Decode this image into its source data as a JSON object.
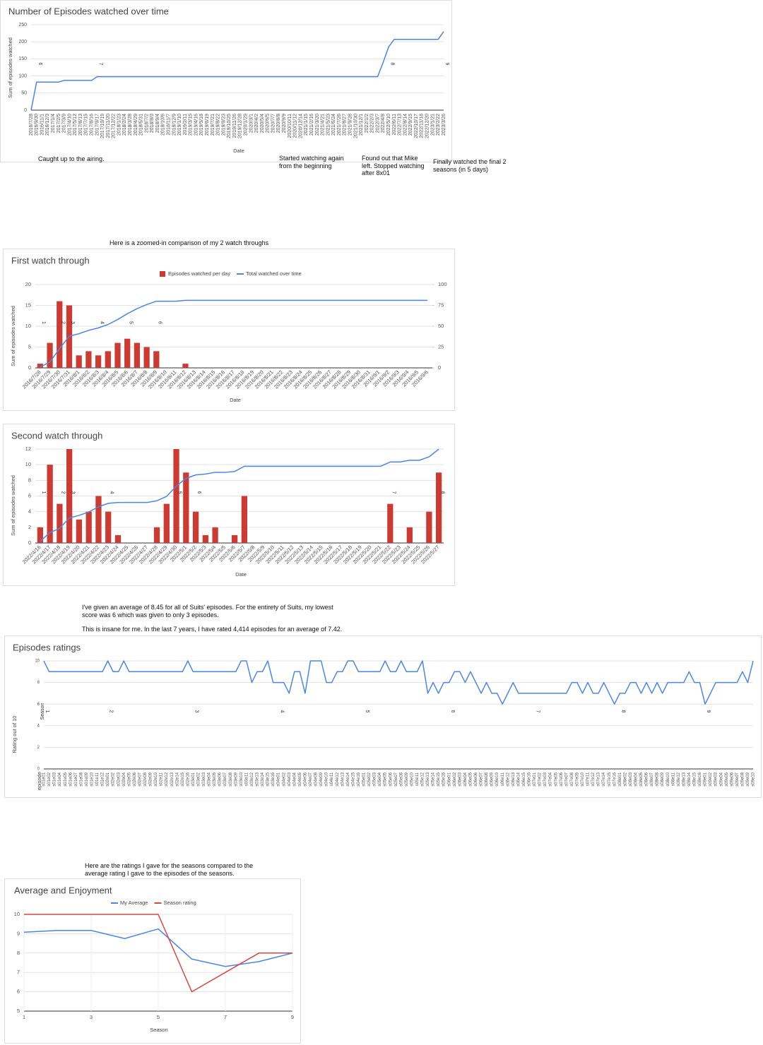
{
  "captions": [
    "Here is a zoomed-in comparison of my 2 watch throughs",
    "I've given an average of 8.45 for all of Suits' episodes. For the entirety of Suits, my lowest score was 6 which was given to only 3 episodes.",
    "This is insane for me. In the last 7 years, I have rated 4,414 episodes for an average of 7.42.",
    "Here are the ratings I gave for the seasons compared to the average rating I gave to the episodes of the seasons."
  ],
  "chart_data": [
    {
      "type": "line",
      "title": "Number of Episodes watched over time",
      "x_label": "Date",
      "y_label": "Sum of episodes watched",
      "categories": [
        "2016/7/28",
        "2016/9/30",
        "2016/11/1",
        "2016/12/3",
        "2017/1/4",
        "2017/2/5",
        "2017/3/9",
        "2017/4/10",
        "2017/5/12",
        "2017/6/13",
        "2017/7/15",
        "2017/8/16",
        "2017/9/17",
        "2017/10/19",
        "2017/11/20",
        "2017/12/22",
        "2018/1/23",
        "2018/2/24",
        "2018/3/28",
        "2018/4/29",
        "2018/5/31",
        "2018/7/2",
        "2018/8/3",
        "2018/9/4",
        "2018/10/6",
        "2018/11/7",
        "2018/12/9",
        "2019/1/10",
        "2019/2/11",
        "2019/3/15",
        "2019/4/16",
        "2019/5/18",
        "2019/6/19",
        "2019/7/21",
        "2019/8/22",
        "2019/9/23",
        "2019/10/25",
        "2019/11/26",
        "2019/12/28",
        "2020/1/29",
        "2020/3/1",
        "2020/4/2",
        "2020/5/4",
        "2020/6/5",
        "2020/7/7",
        "2020/8/8",
        "2020/9/9",
        "2020/10/11",
        "2020/11/12",
        "2020/12/14",
        "2021/1/15",
        "2021/2/16",
        "2021/3/20",
        "2021/4/21",
        "2021/5/23",
        "2021/6/24",
        "2021/7/26",
        "2021/8/27",
        "2021/9/28",
        "2021/10/30",
        "2021/12/1",
        "2022/1/2",
        "2022/2/3",
        "2022/3/7",
        "2022/4/8",
        "2022/5/10",
        "2022/6/11",
        "2022/7/13",
        "2022/8/14",
        "2022/9/15",
        "2022/10/17",
        "2022/11/18",
        "2022/12/20",
        "2023/1/21",
        "2023/2/22",
        "2023/3/26"
      ],
      "series": [
        {
          "color": "#4a86e8",
          "values": [
            0,
            82,
            82,
            82,
            82,
            82,
            87,
            87,
            87,
            87,
            87,
            87,
            98,
            98,
            98,
            98,
            98,
            98,
            98,
            98,
            98,
            98,
            98,
            98,
            98,
            98,
            98,
            98,
            98,
            98,
            98,
            98,
            98,
            98,
            98,
            98,
            98,
            98,
            98,
            98,
            98,
            98,
            98,
            98,
            98,
            98,
            98,
            98,
            98,
            98,
            98,
            98,
            98,
            98,
            98,
            98,
            98,
            98,
            98,
            98,
            98,
            98,
            98,
            98,
            140,
            185,
            207,
            207,
            207,
            207,
            207,
            207,
            207,
            207,
            207,
            230
          ]
        }
      ],
      "ylim": [
        0,
        250
      ],
      "yticks": [
        0,
        50,
        100,
        150,
        200,
        250
      ],
      "grid": true,
      "season_markers": [
        {
          "x": "2016/9/30",
          "label": "6"
        },
        {
          "x": "2017/9/17",
          "label": "7"
        },
        {
          "x": "2022/5/10",
          "label": "8"
        },
        {
          "x": "2023/3/26",
          "label": "9"
        }
      ],
      "notes": [
        "Caught up to the airing.",
        "Started watching again from the beginning",
        "Found out that Mike left. Stopped watching after 8x01",
        "Finally watched the final 2 seasons (in 5 days)"
      ]
    },
    {
      "type": "combo",
      "title": "First watch through",
      "x_label": "Date",
      "y_label": "Sum of episodes watched",
      "legend": "top",
      "categories": [
        "2016/7/28",
        "2016/7/29",
        "2016/7/30",
        "2016/7/31",
        "2016/8/1",
        "2016/8/2",
        "2016/8/3",
        "2016/8/4",
        "2016/8/5",
        "2016/8/6",
        "2016/8/7",
        "2016/8/8",
        "2016/8/9",
        "2016/8/10",
        "2016/8/11",
        "2016/8/12",
        "2016/8/13",
        "2016/8/14",
        "2016/8/15",
        "2016/8/16",
        "2016/8/17",
        "2016/8/18",
        "2016/8/19",
        "2016/8/20",
        "2016/8/21",
        "2016/8/22",
        "2016/8/23",
        "2016/8/24",
        "2016/8/25",
        "2016/8/26",
        "2016/8/27",
        "2016/8/28",
        "2016/8/29",
        "2016/8/30",
        "2016/8/31",
        "2016/9/1",
        "2016/9/2",
        "2016/9/3",
        "2016/9/4",
        "2016/9/5",
        "2016/9/6"
      ],
      "series": [
        {
          "name": "Episodes watched per day",
          "type": "bar",
          "color": "#cc3a32",
          "values": [
            1,
            6,
            16,
            15,
            3,
            4,
            3,
            4,
            6,
            7,
            6,
            5,
            4,
            0,
            0,
            1,
            0,
            0,
            0,
            0,
            0,
            0,
            0,
            0,
            0,
            0,
            0,
            0,
            0,
            0,
            0,
            0,
            0,
            0,
            0,
            0,
            0,
            0,
            0,
            0,
            0
          ]
        },
        {
          "name": "Total watched over time",
          "type": "line",
          "axis": "y2",
          "color": "#4a86e8",
          "values": [
            1,
            7,
            23,
            38,
            41,
            45,
            48,
            52,
            58,
            65,
            71,
            76,
            80,
            80,
            80,
            81,
            81,
            81,
            81,
            81,
            81,
            81,
            81,
            81,
            81,
            81,
            81,
            81,
            81,
            81,
            81,
            81,
            81,
            81,
            81,
            81,
            81,
            81,
            81,
            81,
            81
          ]
        }
      ],
      "ylim": [
        0,
        20
      ],
      "yticks": [
        0,
        5,
        10,
        15,
        20
      ],
      "y2lim": [
        0,
        100
      ],
      "y2ticks": [
        0,
        25,
        50,
        75,
        100
      ],
      "grid": true,
      "season_markers": [
        {
          "x": "2016/7/28",
          "label": "1"
        },
        {
          "x": "2016/7/30",
          "label": "2"
        },
        {
          "x": "2016/7/31",
          "label": "3"
        },
        {
          "x": "2016/8/3",
          "label": "4"
        },
        {
          "x": "2016/8/6",
          "label": "5"
        },
        {
          "x": "2016/8/9",
          "label": "6"
        }
      ]
    },
    {
      "type": "combo",
      "title": "Second watch through",
      "x_label": "Date",
      "y_label": "Sum of episodes watched",
      "categories": [
        "2022/4/16",
        "2022/4/17",
        "2022/4/18",
        "2022/4/19",
        "2022/4/20",
        "2022/4/21",
        "2022/4/22",
        "2022/4/23",
        "2022/4/24",
        "2022/4/25",
        "2022/4/26",
        "2022/4/27",
        "2022/4/28",
        "2022/4/29",
        "2022/4/30",
        "2022/5/1",
        "2022/5/2",
        "2022/5/3",
        "2022/5/4",
        "2022/5/5",
        "2022/5/6",
        "2022/5/7",
        "2022/5/8",
        "2022/5/9",
        "2022/5/10",
        "2022/5/11",
        "2022/5/12",
        "2022/5/13",
        "2022/5/14",
        "2022/5/15",
        "2022/5/16",
        "2022/5/17",
        "2022/5/18",
        "2022/5/19",
        "2022/5/20",
        "2022/5/21",
        "2022/5/22",
        "2022/5/23",
        "2022/5/24",
        "2022/5/25",
        "2022/5/26",
        "2022/5/27"
      ],
      "series": [
        {
          "type": "bar",
          "color": "#cc3a32",
          "values": [
            2,
            10,
            5,
            12,
            3,
            4,
            6,
            4,
            1,
            0,
            0,
            0,
            2,
            5,
            12,
            9,
            4,
            1,
            2,
            0,
            1,
            6,
            0,
            0,
            0,
            0,
            0,
            0,
            0,
            0,
            0,
            0,
            0,
            0,
            0,
            0,
            5,
            0,
            2,
            0,
            4,
            9
          ]
        },
        {
          "type": "line",
          "axis": "y2",
          "color": "#4a86e8",
          "values": [
            2,
            12,
            17,
            29,
            32,
            36,
            42,
            46,
            47,
            47,
            47,
            47,
            49,
            54,
            66,
            75,
            79,
            80,
            82,
            82,
            83,
            89,
            89,
            89,
            89,
            89,
            89,
            89,
            89,
            89,
            89,
            89,
            89,
            89,
            89,
            89,
            94,
            94,
            96,
            96,
            100,
            109
          ]
        }
      ],
      "ylim": [
        0,
        12
      ],
      "yticks": [
        0,
        2,
        4,
        6,
        8,
        10,
        12
      ],
      "y2lim": [
        0,
        109
      ],
      "grid": true,
      "season_markers": [
        {
          "x": "2022/4/16",
          "label": "1"
        },
        {
          "x": "2022/4/18",
          "label": "2"
        },
        {
          "x": "2022/4/19",
          "label": "3"
        },
        {
          "x": "2022/4/23",
          "label": "4"
        },
        {
          "x": "2022/4/30",
          "label": "5"
        },
        {
          "x": "2022/5/2",
          "label": "6"
        },
        {
          "x": "2022/5/22",
          "label": "7"
        },
        {
          "x": "2022/5/27",
          "label": "8"
        }
      ]
    },
    {
      "type": "line",
      "title": "Episodes ratings",
      "x_label": "episode",
      "y_label": "Rating out of 10",
      "categories": [
        "s01e01",
        "s01e02",
        "s01e03",
        "s01e04",
        "s01e05",
        "s01e06",
        "s01e07",
        "s01e08",
        "s01e09",
        "s01e10",
        "s01e11",
        "s01e12",
        "s02e01",
        "s02e02",
        "s02e03",
        "s02e04",
        "s02e05",
        "s02e06",
        "s02e07",
        "s02e08",
        "s02e09",
        "s02e10",
        "s02e11",
        "s02e12",
        "s02e13",
        "s02e14",
        "s02e15",
        "s02e16",
        "s03e01",
        "s03e02",
        "s03e03",
        "s03e04",
        "s03e05",
        "s03e06",
        "s03e07",
        "s03e08",
        "s03e09",
        "s03e10",
        "s03e11",
        "s03e12",
        "s03e13",
        "s03e14",
        "s03e15",
        "s03e16",
        "s04e01",
        "s04e02",
        "s04e03",
        "s04e04",
        "s04e05",
        "s04e06",
        "s04e07",
        "s04e08",
        "s04e09",
        "s04e10",
        "s04e11",
        "s04e12",
        "s04e13",
        "s04e14",
        "s04e15",
        "s04e16",
        "s05e01",
        "s05e02",
        "s05e03",
        "s05e04",
        "s05e05",
        "s05e06",
        "s05e07",
        "s05e08",
        "s05e09",
        "s05e10",
        "s05e11",
        "s05e12",
        "s05e13",
        "s05e14",
        "s05e15",
        "s05e16",
        "s06e01",
        "s06e02",
        "s06e03",
        "s06e04",
        "s06e05",
        "s06e06",
        "s06e07",
        "s06e08",
        "s06e09",
        "s06e10",
        "s06e11",
        "s06e12",
        "s06e13",
        "s06e14",
        "s06e15",
        "s06e16",
        "s07e01",
        "s07e02",
        "s07e03",
        "s07e04",
        "s07e05",
        "s07e06",
        "s07e07",
        "s07e08",
        "s07e09",
        "s07e10",
        "s07e11",
        "s07e12",
        "s07e13",
        "s07e14",
        "s07e15",
        "s07e16",
        "s08e01",
        "s08e02",
        "s08e03",
        "s08e04",
        "s08e05",
        "s08e06",
        "s08e07",
        "s08e08",
        "s08e09",
        "s08e10",
        "s08e11",
        "s08e12",
        "s08e13",
        "s08e14",
        "s08e15",
        "s08e16",
        "s09e01",
        "s09e02",
        "s09e03",
        "s09e04",
        "s09e05",
        "s09e06",
        "s09e07",
        "s09e08",
        "s09e09",
        "s09e10"
      ],
      "series": [
        {
          "color": "#4a86e8",
          "values": [
            10,
            9,
            9,
            9,
            9,
            9,
            9,
            9,
            9,
            9,
            9,
            9,
            10,
            9,
            9,
            10,
            9,
            9,
            9,
            9,
            9,
            9,
            9,
            9,
            9,
            9,
            9,
            10,
            9,
            9,
            9,
            9,
            9,
            9,
            9,
            9,
            9,
            10,
            10,
            8,
            9,
            9,
            10,
            8,
            8,
            8,
            7,
            9,
            9,
            7,
            10,
            10,
            10,
            8,
            8,
            9,
            9,
            10,
            10,
            9,
            9,
            9,
            9,
            9,
            10,
            9,
            9,
            10,
            9,
            9,
            9,
            10,
            7,
            8,
            7,
            8,
            8,
            9,
            9,
            8,
            9,
            8,
            7,
            8,
            7,
            7,
            6,
            7,
            8,
            7,
            7,
            7,
            7,
            7,
            7,
            7,
            7,
            7,
            7,
            8,
            8,
            7,
            8,
            7,
            7,
            8,
            7,
            6,
            7,
            7,
            8,
            8,
            7,
            8,
            7,
            8,
            7,
            8,
            8,
            8,
            8,
            9,
            8,
            8,
            6,
            7,
            8,
            8,
            8,
            8,
            8,
            9,
            8,
            10
          ]
        }
      ],
      "ylim": [
        0,
        10
      ],
      "yticks": [
        0,
        2,
        4,
        6,
        8,
        10
      ],
      "grid": true,
      "season_marker_title": "Season",
      "season_markers": [
        {
          "x": "s01e01",
          "label": "1"
        },
        {
          "x": "s02e01",
          "label": "2"
        },
        {
          "x": "s03e01",
          "label": "3"
        },
        {
          "x": "s04e01",
          "label": "4"
        },
        {
          "x": "s05e01",
          "label": "5"
        },
        {
          "x": "s06e01",
          "label": "6"
        },
        {
          "x": "s07e01",
          "label": "7"
        },
        {
          "x": "s08e01",
          "label": "8"
        },
        {
          "x": "s09e01",
          "label": "9"
        }
      ]
    },
    {
      "type": "line",
      "title": "Average and Enjoyment",
      "x_label": "Season",
      "legend": "top",
      "x": [
        1,
        2,
        3,
        4,
        5,
        6,
        7,
        8,
        9
      ],
      "xlim": [
        1,
        9
      ],
      "xticks": [
        1,
        3,
        5,
        7,
        9
      ],
      "series": [
        {
          "name": "My Average",
          "color": "#4a86e8",
          "values": [
            9.08,
            9.17,
            9.17,
            8.75,
            9.25,
            7.69,
            7.31,
            7.56,
            8.0
          ]
        },
        {
          "name": "Season rating",
          "color": "#d9473f",
          "values": [
            10,
            10,
            10,
            10,
            10,
            6,
            7,
            8,
            8
          ]
        }
      ],
      "ylim": [
        5,
        10
      ],
      "yticks": [
        5,
        6,
        7,
        8,
        9,
        10
      ],
      "grid": true
    }
  ]
}
